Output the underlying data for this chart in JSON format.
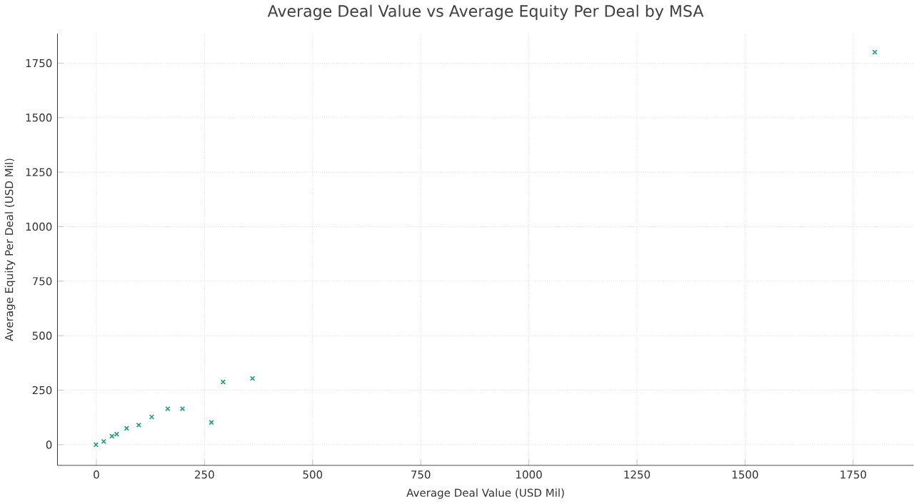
{
  "chart_data": {
    "type": "scatter",
    "title": "Average Deal Value vs Average Equity Per Deal by MSA",
    "xlabel": "Average Deal Value (USD Mil)",
    "ylabel": "Average Equity Per Deal (USD Mil)",
    "x": [
      1800,
      361,
      293,
      266,
      199,
      165,
      128,
      98,
      70,
      47,
      36,
      17,
      -1
    ],
    "series": [
      {
        "color": "#1b9e77",
        "values": [
          1800,
          304,
          288,
          102,
          165,
          165,
          127,
          90,
          75,
          48,
          39,
          15,
          0
        ]
      }
    ],
    "xlim": [
      -90,
      1890
    ],
    "ylim": [
      -95,
      1885
    ],
    "xticks": [
      0,
      250,
      500,
      750,
      1000,
      1250,
      1500,
      1750
    ],
    "yticks": [
      0,
      250,
      500,
      750,
      1000,
      1250,
      1500,
      1750
    ],
    "grid": true,
    "marker": "cross"
  }
}
